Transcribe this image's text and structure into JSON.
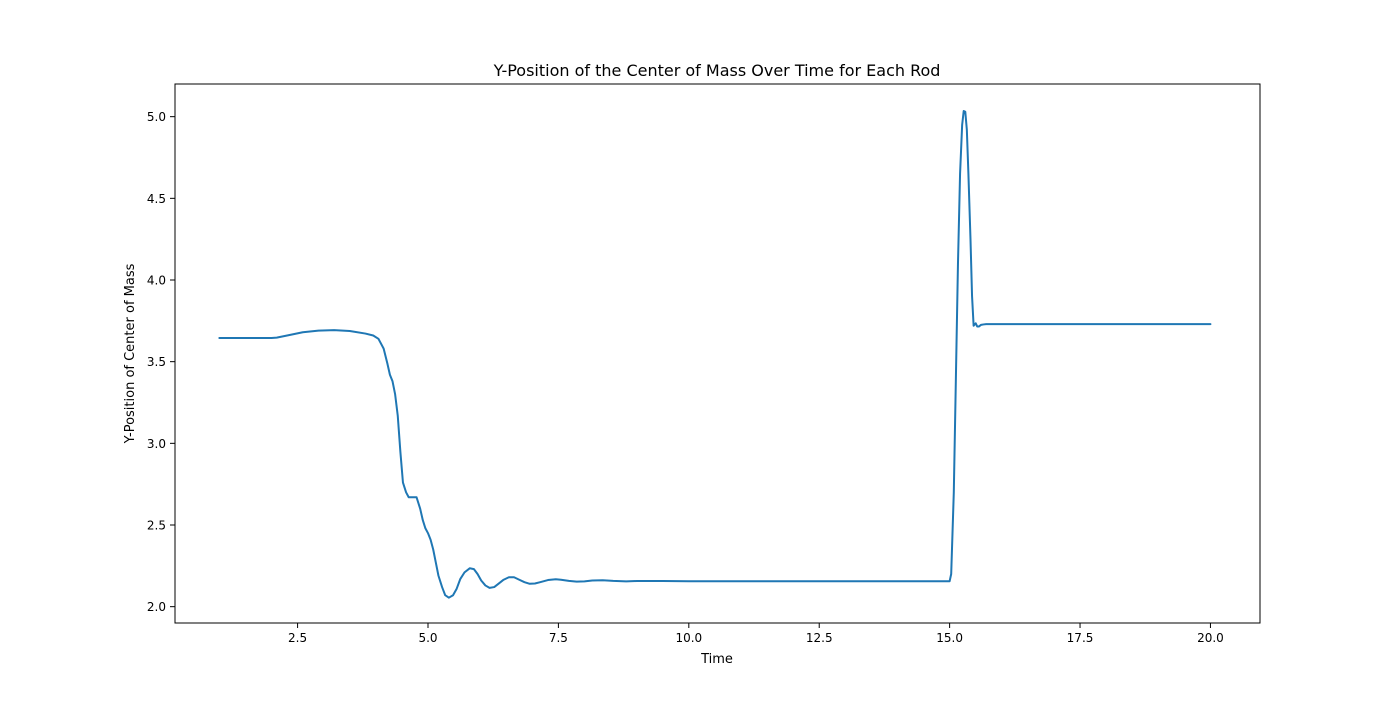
{
  "chart_data": {
    "type": "line",
    "title": "Y-Position of the Center of Mass Over Time for Each Rod",
    "xlabel": "Time",
    "ylabel": "Y-Position of Center of Mass",
    "xlim": [
      0.15,
      20.95
    ],
    "ylim": [
      1.9,
      5.2
    ],
    "x_ticks": [
      2.5,
      5.0,
      7.5,
      10.0,
      12.5,
      15.0,
      17.5,
      20.0
    ],
    "x_tick_labels": [
      "2.5",
      "5.0",
      "7.5",
      "10.0",
      "12.5",
      "15.0",
      "17.5",
      "20.0"
    ],
    "y_ticks": [
      2.0,
      2.5,
      3.0,
      3.5,
      4.0,
      4.5,
      5.0
    ],
    "y_tick_labels": [
      "2.0",
      "2.5",
      "3.0",
      "3.5",
      "4.0",
      "4.5",
      "5.0"
    ],
    "grid": false,
    "legend": "none",
    "line_color": "#1f77b4",
    "series": [
      {
        "x": [
          1.0,
          1.5,
          2.0,
          2.1,
          2.3,
          2.6,
          2.9,
          3.2,
          3.5,
          3.8,
          3.95,
          4.05,
          4.15,
          4.22,
          4.27,
          4.32,
          4.37,
          4.42,
          4.47,
          4.52,
          4.58,
          4.63,
          4.7,
          4.78,
          4.85,
          4.9,
          4.95,
          5.0,
          5.05,
          5.1,
          5.15,
          5.2,
          5.27,
          5.33,
          5.4,
          5.48,
          5.55,
          5.62,
          5.7,
          5.8,
          5.88,
          5.95,
          6.02,
          6.1,
          6.18,
          6.27,
          6.35,
          6.45,
          6.55,
          6.65,
          6.75,
          6.85,
          6.95,
          7.05,
          7.15,
          7.3,
          7.45,
          7.55,
          7.7,
          7.85,
          8.0,
          8.15,
          8.35,
          8.55,
          8.8,
          9.0,
          9.5,
          10.0,
          12.0,
          14.0,
          14.95,
          15.0,
          15.03,
          15.08,
          15.12,
          15.16,
          15.2,
          15.24,
          15.27,
          15.3,
          15.33,
          15.36,
          15.4,
          15.43,
          15.46,
          15.5,
          15.53,
          15.56,
          15.6,
          15.65,
          15.7,
          15.8,
          16.0,
          17.0,
          18.0,
          19.0,
          20.0
        ],
        "y": [
          3.645,
          3.645,
          3.645,
          3.647,
          3.66,
          3.68,
          3.69,
          3.693,
          3.688,
          3.672,
          3.66,
          3.64,
          3.58,
          3.49,
          3.42,
          3.38,
          3.3,
          3.17,
          2.95,
          2.76,
          2.7,
          2.67,
          2.67,
          2.67,
          2.6,
          2.53,
          2.48,
          2.45,
          2.41,
          2.35,
          2.27,
          2.19,
          2.12,
          2.07,
          2.055,
          2.07,
          2.11,
          2.17,
          2.21,
          2.235,
          2.23,
          2.2,
          2.16,
          2.13,
          2.115,
          2.12,
          2.14,
          2.165,
          2.18,
          2.18,
          2.165,
          2.15,
          2.14,
          2.142,
          2.15,
          2.163,
          2.168,
          2.165,
          2.158,
          2.153,
          2.155,
          2.16,
          2.162,
          2.158,
          2.155,
          2.157,
          2.157,
          2.156,
          2.156,
          2.156,
          2.156,
          2.156,
          2.2,
          2.7,
          3.4,
          4.1,
          4.65,
          4.95,
          5.035,
          5.03,
          4.92,
          4.65,
          4.25,
          3.9,
          3.72,
          3.735,
          3.715,
          3.715,
          3.725,
          3.728,
          3.73,
          3.73,
          3.73,
          3.73,
          3.73,
          3.73,
          3.73
        ]
      }
    ]
  }
}
